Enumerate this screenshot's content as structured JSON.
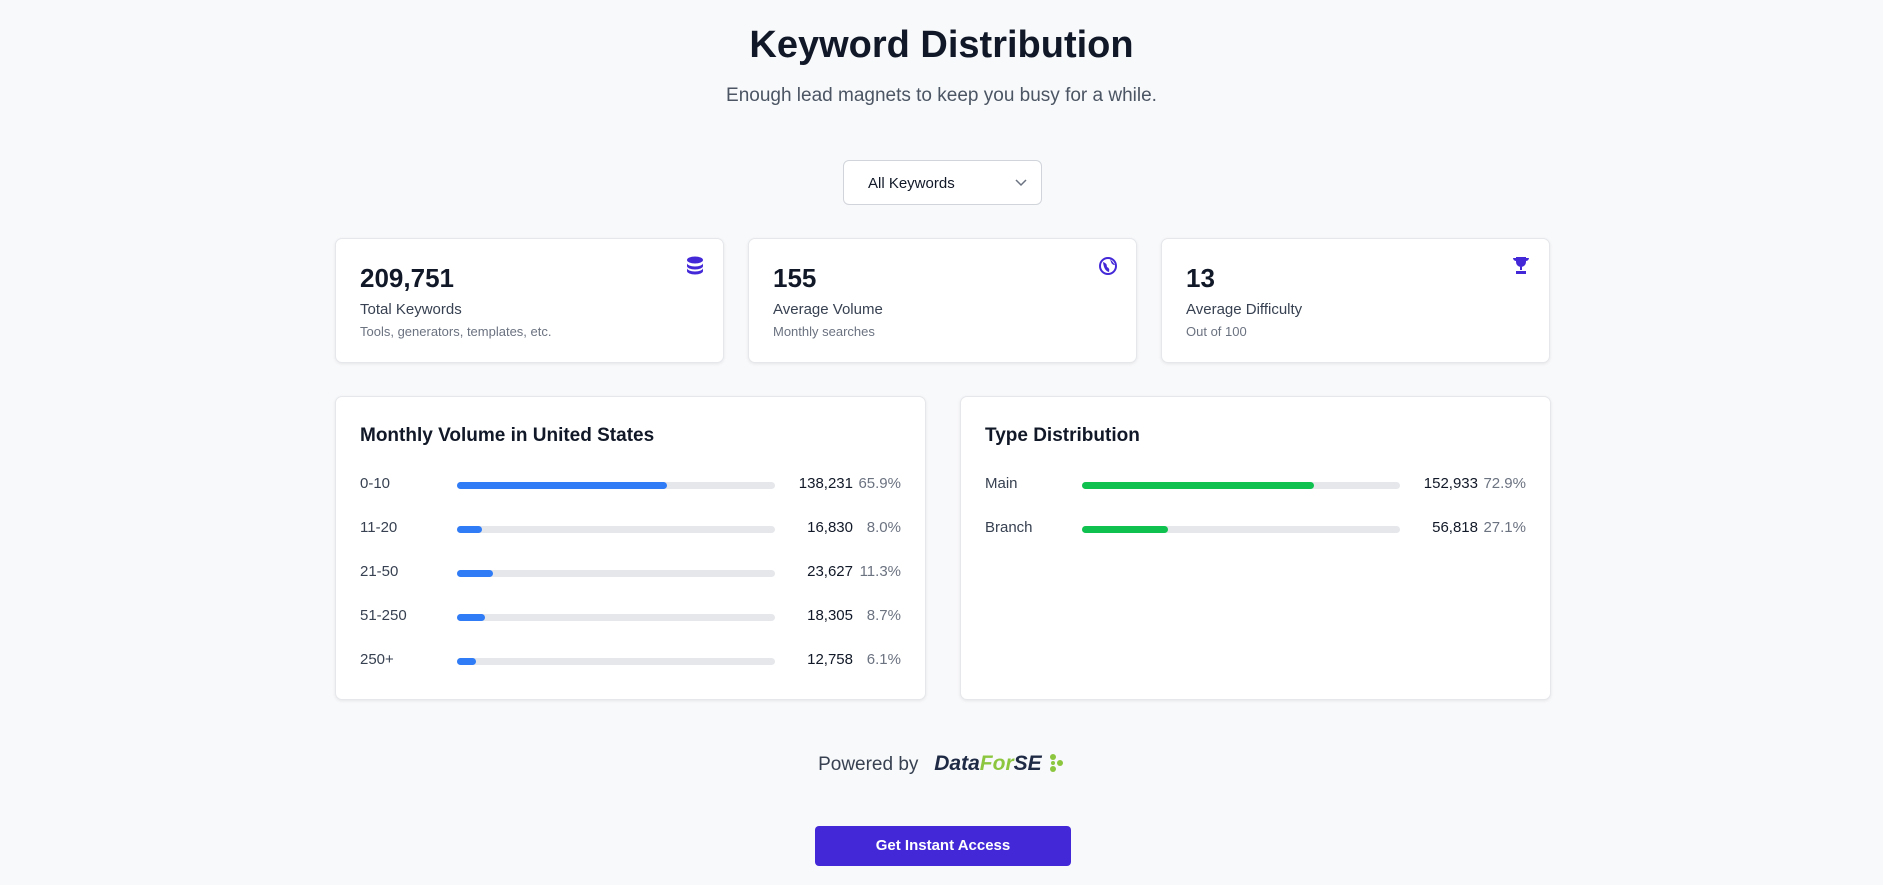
{
  "header": {
    "title": "Keyword Distribution",
    "subtitle": "Enough lead magnets to keep you busy for a while."
  },
  "filter": {
    "label": "All Keywords"
  },
  "stats": [
    {
      "value": "209,751",
      "label": "Total Keywords",
      "sub": "Tools, generators, templates, etc."
    },
    {
      "value": "155",
      "label": "Average Volume",
      "sub": "Monthly searches"
    },
    {
      "value": "13",
      "label": "Average Difficulty",
      "sub": "Out of 100"
    }
  ],
  "panels": [
    {
      "title": "Monthly Volume in United States",
      "color": "#2f7cf6",
      "rows": [
        {
          "label": "0-10",
          "count": "138,231",
          "percent": {
            "value": 65.9,
            "label": "65.9%"
          }
        },
        {
          "label": "11-20",
          "count": "16,830",
          "percent": {
            "value": 8.0,
            "label": "8.0%"
          }
        },
        {
          "label": "21-50",
          "count": "23,627",
          "percent": {
            "value": 11.3,
            "label": "11.3%"
          }
        },
        {
          "label": "51-250",
          "count": "18,305",
          "percent": {
            "value": 8.7,
            "label": "8.7%"
          }
        },
        {
          "label": "250+",
          "count": "12,758",
          "percent": {
            "value": 6.1,
            "label": "6.1%"
          }
        }
      ]
    },
    {
      "title": "Type Distribution",
      "color": "#0fc24f",
      "rows": [
        {
          "label": "Main",
          "count": "152,933",
          "percent": {
            "value": 72.9,
            "label": "72.9%"
          }
        },
        {
          "label": "Branch",
          "count": "56,818",
          "percent": {
            "value": 27.1,
            "label": "27.1%"
          }
        }
      ]
    }
  ],
  "footer": {
    "powered": "Powered by",
    "logo": [
      "Data",
      "For",
      "SE"
    ],
    "button": "Get Instant Access"
  }
}
